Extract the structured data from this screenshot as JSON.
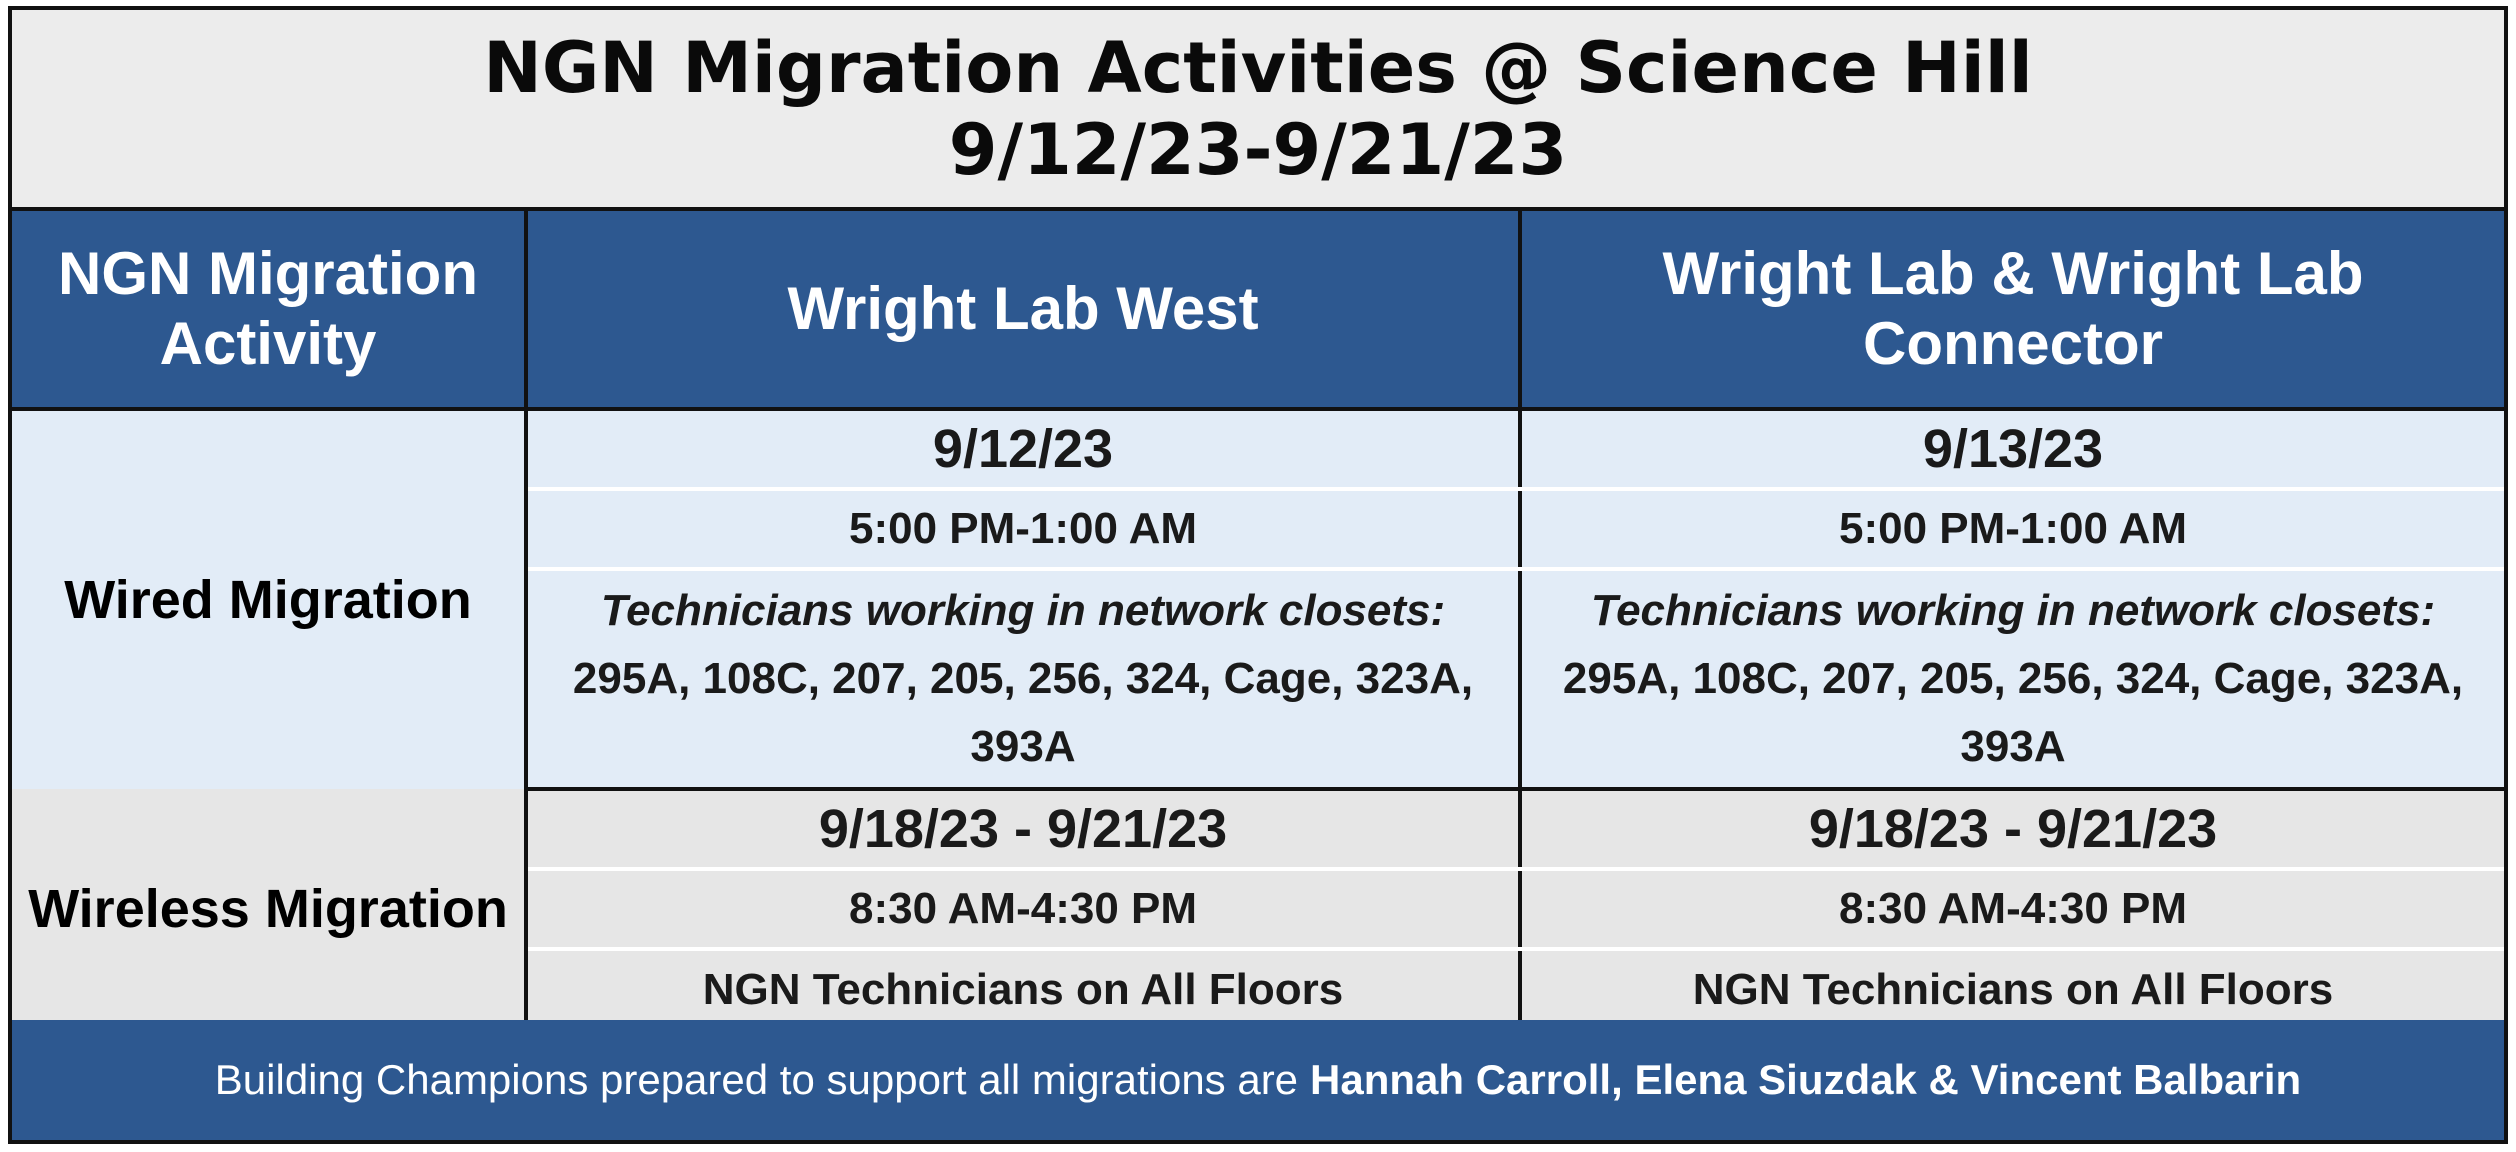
{
  "title": {
    "line1": "NGN Migration Activities @ Science Hill",
    "line2": "9/12/23-9/21/23"
  },
  "columns": {
    "activity": "NGN Migration Activity",
    "col1": "Wright Lab West",
    "col2": "Wright Lab & Wright Lab Connector"
  },
  "wired": {
    "label": "Wired Migration",
    "col1": {
      "date": "9/12/23",
      "time": "5:00 PM-1:00 AM",
      "note_heading": "Technicians working in network closets:",
      "note_body": "295A, 108C, 207, 205, 256, 324, Cage, 323A, 393A"
    },
    "col2": {
      "date": "9/13/23",
      "time": "5:00 PM-1:00 AM",
      "note_heading": "Technicians working in network closets:",
      "note_body": "295A, 108C, 207, 205, 256, 324, Cage, 323A, 393A"
    }
  },
  "wireless": {
    "label": "Wireless Migration",
    "col1": {
      "date": "9/18/23 - 9/21/23",
      "time": "8:30 AM-4:30 PM",
      "floors": "NGN Technicians on All Floors"
    },
    "col2": {
      "date": "9/18/23 - 9/21/23",
      "time": "8:30 AM-4:30 PM",
      "floors": "NGN Technicians on All Floors"
    }
  },
  "footer": {
    "prefix": "Building Champions prepared to support all migrations are",
    "names": "Hannah Carroll, Elena Siuzdak & Vincent Balbarin"
  },
  "colors": {
    "header_blue": "#2d5890",
    "wired_bg": "#e2ecf7",
    "wireless_bg": "#e6e6e6",
    "title_bg": "#ececec"
  }
}
